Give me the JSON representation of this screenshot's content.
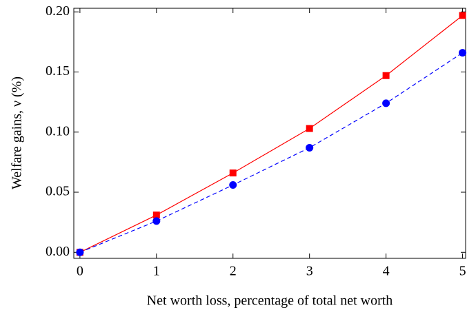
{
  "chart_data": {
    "type": "line",
    "x_label": "Net worth loss, percentage of total net worth",
    "y_label": "Welfare gains, ν (%)",
    "x": [
      0,
      1,
      2,
      3,
      4,
      5
    ],
    "series": [
      {
        "color": "#ff0000",
        "marker": "square",
        "linestyle": "solid",
        "values": [
          0,
          0.031,
          0.066,
          0.103,
          0.147,
          0.197
        ]
      },
      {
        "color": "#0000ff",
        "marker": "circle",
        "linestyle": "dashed",
        "values": [
          0,
          0.026,
          0.056,
          0.087,
          0.124,
          0.166
        ]
      }
    ],
    "xlim": [
      -0.08,
      5.04
    ],
    "ylim": [
      -0.005,
      0.203
    ],
    "xticks": [
      0,
      1,
      2,
      3,
      4,
      5
    ],
    "yticks": [
      {
        "value": 0,
        "label": "0.00"
      },
      {
        "value": 0.05,
        "label": "0.05"
      },
      {
        "value": 0.1,
        "label": "0.10"
      },
      {
        "value": 0.15,
        "label": "0.15"
      },
      {
        "value": 0.2,
        "label": "0.20"
      }
    ],
    "grid": false
  }
}
